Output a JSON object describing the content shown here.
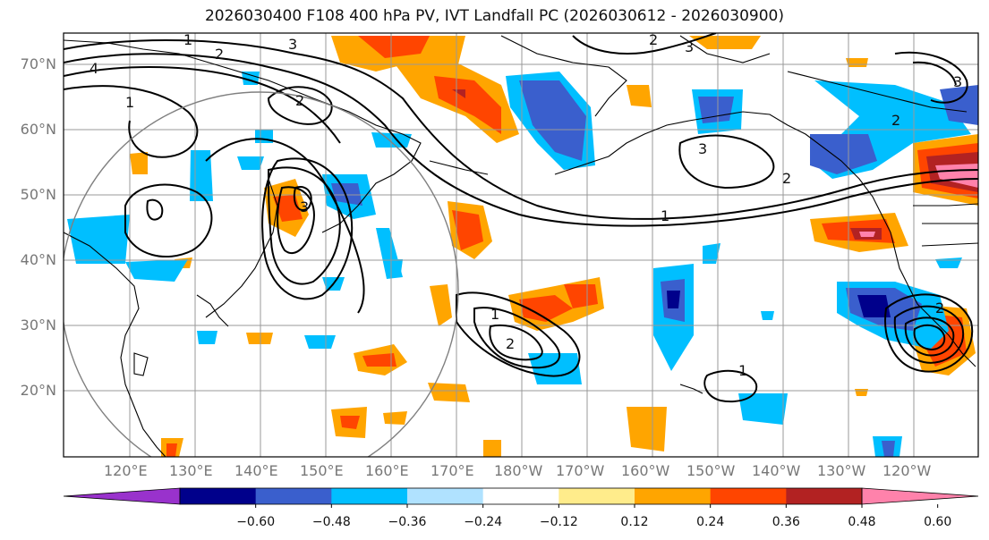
{
  "title": "2026030400 F108 400 hPa PV, IVT Landfall PC (2026030612 - 2026030900)",
  "lat_labels": [
    "70°N",
    "60°N",
    "50°N",
    "40°N",
    "30°N",
    "20°N"
  ],
  "lon_labels": [
    "120°E",
    "130°E",
    "140°E",
    "150°E",
    "160°E",
    "170°E",
    "180°W",
    "170°W",
    "160°W",
    "150°W",
    "140°W",
    "130°W",
    "120°W"
  ],
  "colorbar": {
    "ticks": [
      "−0.60",
      "−0.48",
      "−0.36",
      "−0.24",
      "−0.12",
      "0.12",
      "0.24",
      "0.36",
      "0.48",
      "0.60"
    ],
    "colors": [
      "#9932cc",
      "#00008b",
      "#3a5fcd",
      "#00bfff",
      "#b0e2ff",
      "#ffffff",
      "#ffec8b",
      "#ffa500",
      "#ff4500",
      "#b22222",
      "#ff82ab"
    ]
  },
  "contour_labels": [
    "1",
    "2",
    "3",
    "4",
    "1",
    "2",
    "3",
    "2",
    "3",
    "1",
    "2",
    "1",
    "2",
    "3",
    "2",
    "1",
    "2",
    "3"
  ]
}
